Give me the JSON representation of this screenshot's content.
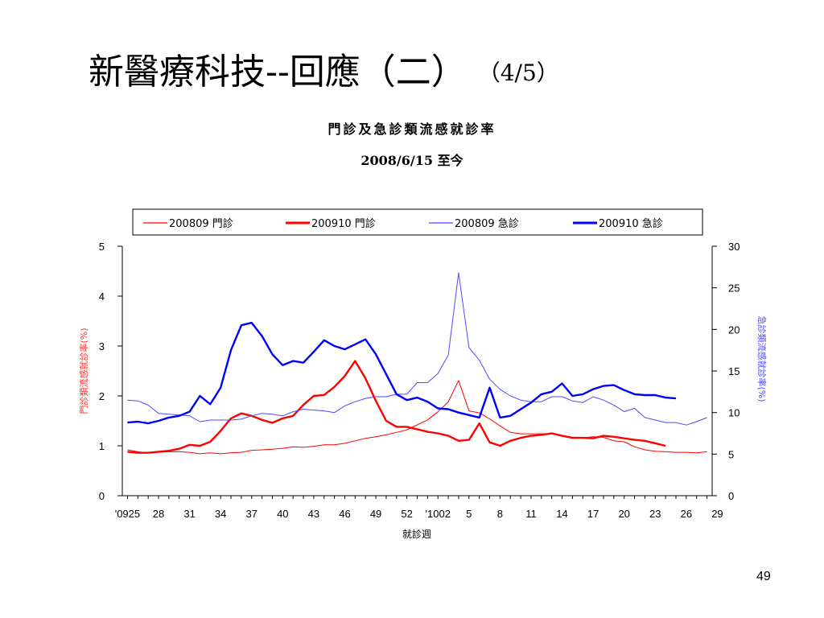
{
  "slide": {
    "title": "新醫療科技--回應（二）",
    "page_fraction": "（4/5）",
    "page_number": "49"
  },
  "chart_data": {
    "type": "line",
    "title": "門診及急診類流感就診率",
    "subtitle": "2008/6/15 至今",
    "xlabel": "就診週",
    "ylabel_left": "門診類流感就診率(%)",
    "ylabel_right": "急診類流感就診率(%)",
    "ylim_left": [
      0,
      5
    ],
    "ylim_right": [
      0,
      30
    ],
    "yticks_left": [
      "0",
      "1",
      "2",
      "3",
      "4",
      "5"
    ],
    "yticks_right": [
      "0",
      "5",
      "10",
      "15",
      "20",
      "25",
      "30"
    ],
    "week_labels": [
      "'0925",
      "28",
      "31",
      "34",
      "37",
      "40",
      "43",
      "46",
      "49",
      "52",
      "'1002",
      "5",
      "8",
      "11",
      "14",
      "17",
      "20",
      "23",
      "26",
      "29"
    ],
    "x_weeks": [
      "25",
      "26",
      "27",
      "28",
      "29",
      "30",
      "31",
      "32",
      "33",
      "34",
      "35",
      "36",
      "37",
      "38",
      "39",
      "40",
      "41",
      "42",
      "43",
      "44",
      "45",
      "46",
      "47",
      "48",
      "49",
      "50",
      "51",
      "52",
      "1",
      "2",
      "3",
      "4",
      "5",
      "6",
      "7",
      "8",
      "9",
      "10",
      "11",
      "12",
      "13",
      "14",
      "15",
      "16",
      "17",
      "18",
      "19",
      "20",
      "21",
      "22",
      "23",
      "24",
      "25",
      "26",
      "27",
      "28",
      "29"
    ],
    "legend_position": "top",
    "grid": false,
    "series": [
      {
        "name": "200809  門診",
        "axis": "left",
        "color": "#ff0000",
        "style": "thin",
        "values": [
          0.92,
          0.88,
          0.86,
          0.87,
          0.88,
          0.88,
          0.87,
          0.84,
          0.86,
          0.84,
          0.86,
          0.87,
          0.91,
          0.92,
          0.93,
          0.95,
          0.98,
          0.97,
          0.99,
          1.02,
          1.02,
          1.05,
          1.1,
          1.15,
          1.18,
          1.22,
          1.27,
          1.32,
          1.42,
          1.52,
          1.68,
          1.88,
          2.31,
          1.7,
          1.66,
          1.54,
          1.4,
          1.27,
          1.24,
          1.24,
          1.24,
          1.24,
          1.19,
          1.17,
          1.16,
          1.18,
          1.17,
          1.1,
          1.08,
          0.98,
          0.92,
          0.89,
          0.88,
          0.87,
          0.87,
          0.86,
          0.88
        ]
      },
      {
        "name": "200910  門診",
        "axis": "left",
        "color": "#ff0000",
        "style": "thick",
        "values": [
          0.88,
          0.86,
          0.86,
          0.88,
          0.9,
          0.94,
          1.02,
          1.0,
          1.08,
          1.3,
          1.55,
          1.65,
          1.6,
          1.52,
          1.46,
          1.55,
          1.6,
          1.82,
          2.0,
          2.02,
          2.18,
          2.4,
          2.7,
          2.35,
          1.9,
          1.5,
          1.38,
          1.38,
          1.33,
          1.28,
          1.25,
          1.2,
          1.1,
          1.12,
          1.45,
          1.07,
          1.0,
          1.1,
          1.16,
          1.2,
          1.22,
          1.25,
          1.2,
          1.16,
          1.16,
          1.15,
          1.2,
          1.18,
          1.15,
          1.12,
          1.1,
          1.05,
          1.0
        ]
      },
      {
        "name": "200809  急診",
        "axis": "right",
        "color": "#4a4aff",
        "style": "thin",
        "values": [
          11.5,
          11.4,
          10.9,
          9.9,
          9.8,
          9.7,
          9.6,
          8.9,
          9.1,
          9.1,
          9.1,
          9.2,
          9.6,
          9.9,
          9.8,
          9.6,
          10.1,
          10.4,
          10.3,
          10.2,
          10.0,
          10.8,
          11.3,
          11.7,
          11.9,
          11.9,
          12.2,
          12.2,
          13.6,
          13.6,
          14.7,
          16.9,
          26.8,
          17.8,
          16.3,
          14.0,
          12.8,
          12.0,
          11.5,
          11.3,
          11.3,
          11.9,
          11.9,
          11.4,
          11.2,
          11.9,
          11.5,
          10.9,
          10.1,
          10.5,
          9.4,
          9.1,
          8.8,
          8.8,
          8.5,
          8.9,
          9.4
        ]
      },
      {
        "name": "200910  急診",
        "axis": "right",
        "color": "#0000ff",
        "style": "thick",
        "values": [
          8.8,
          8.9,
          8.7,
          9.0,
          9.4,
          9.6,
          10.1,
          12.0,
          11.0,
          13.0,
          17.5,
          20.5,
          20.8,
          19.2,
          17.0,
          15.7,
          16.2,
          16.0,
          17.3,
          18.7,
          18.0,
          17.6,
          18.2,
          18.8,
          17.0,
          14.6,
          12.2,
          11.5,
          11.8,
          11.3,
          10.5,
          10.4,
          10.0,
          9.7,
          9.4,
          13.0,
          9.4,
          9.6,
          10.4,
          11.2,
          12.2,
          12.5,
          13.5,
          12.0,
          12.2,
          12.8,
          13.2,
          13.3,
          12.7,
          12.2,
          12.1,
          12.1,
          11.8,
          11.7
        ]
      }
    ]
  }
}
